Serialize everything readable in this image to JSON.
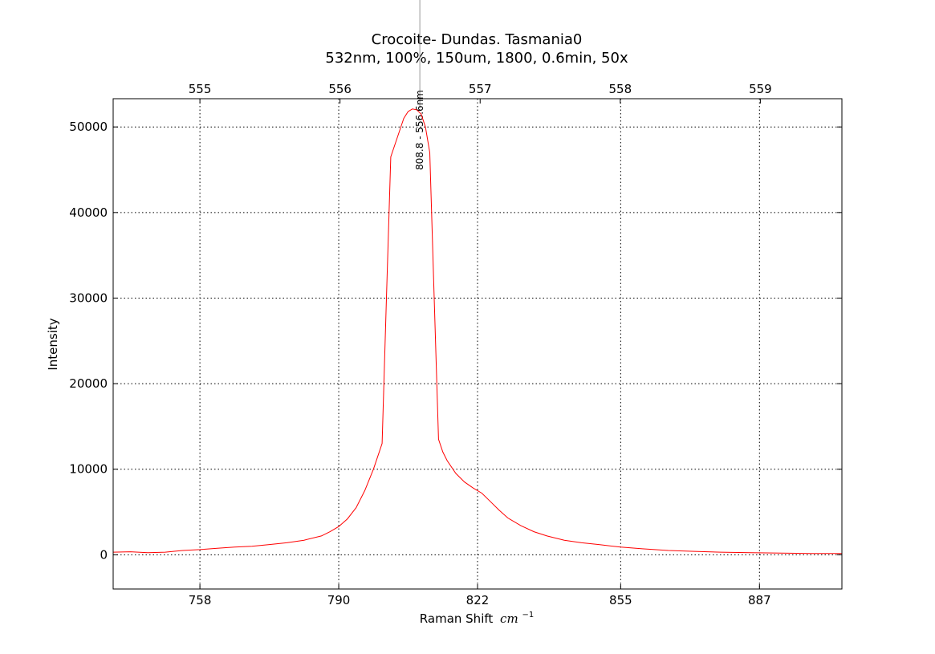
{
  "chart_data": {
    "type": "line",
    "title": "Crocoite- Dundas. Tasmania0",
    "subtitle": "532nm, 100%, 150um, 1800, 0.6min, 50x",
    "xlabel": "Raman Shift",
    "xlabel_unit_base": "cm",
    "xlabel_unit_exp": "−1",
    "ylabel": "Intensity",
    "xlim": [
      738,
      906
    ],
    "ylim": [
      -4000,
      53300
    ],
    "x_ticks": [
      758,
      790,
      822,
      855,
      887
    ],
    "x_tick_labels": [
      "758",
      "790",
      "822",
      "855",
      "887"
    ],
    "y_ticks": [
      0,
      10000,
      20000,
      30000,
      40000,
      50000
    ],
    "y_tick_labels": [
      "0",
      "10000",
      "20000",
      "30000",
      "40000",
      "50000"
    ],
    "top_axis": {
      "ticks": [
        555,
        556,
        557,
        558,
        559
      ],
      "tick_labels": [
        "555",
        "556",
        "557",
        "558",
        "559"
      ],
      "ticks_at_bottom_x": [
        758,
        790.3,
        822.6,
        854.9,
        887.2
      ]
    },
    "peak_annotation": {
      "x": 808.7,
      "label": "808.8 - 556.6nm"
    },
    "grid": true,
    "series": [
      {
        "color": "#ff0000",
        "x": [
          738,
          742,
          746,
          750,
          754,
          758,
          762,
          766,
          770,
          774,
          778,
          782,
          786,
          788,
          790,
          792,
          794,
          796,
          798,
          800,
          801,
          802,
          803,
          804,
          805,
          806,
          807,
          808,
          809,
          810,
          811,
          812,
          813,
          814,
          815,
          817,
          819,
          821,
          823,
          825,
          827,
          829,
          832,
          835,
          838,
          842,
          846,
          850,
          855,
          860,
          866,
          872,
          878,
          885,
          892,
          899,
          906
        ],
        "y": [
          300,
          350,
          250,
          300,
          500,
          600,
          750,
          900,
          1000,
          1200,
          1400,
          1700,
          2200,
          2700,
          3300,
          4200,
          5500,
          7500,
          10000,
          13000,
          30000,
          46500,
          48000,
          49500,
          51000,
          51800,
          52100,
          52000,
          51500,
          50000,
          47000,
          30000,
          13500,
          12000,
          11000,
          9500,
          8500,
          7800,
          7200,
          6200,
          5200,
          4300,
          3400,
          2700,
          2200,
          1700,
          1400,
          1200,
          900,
          700,
          500,
          400,
          300,
          250,
          200,
          150,
          150
        ]
      }
    ]
  }
}
